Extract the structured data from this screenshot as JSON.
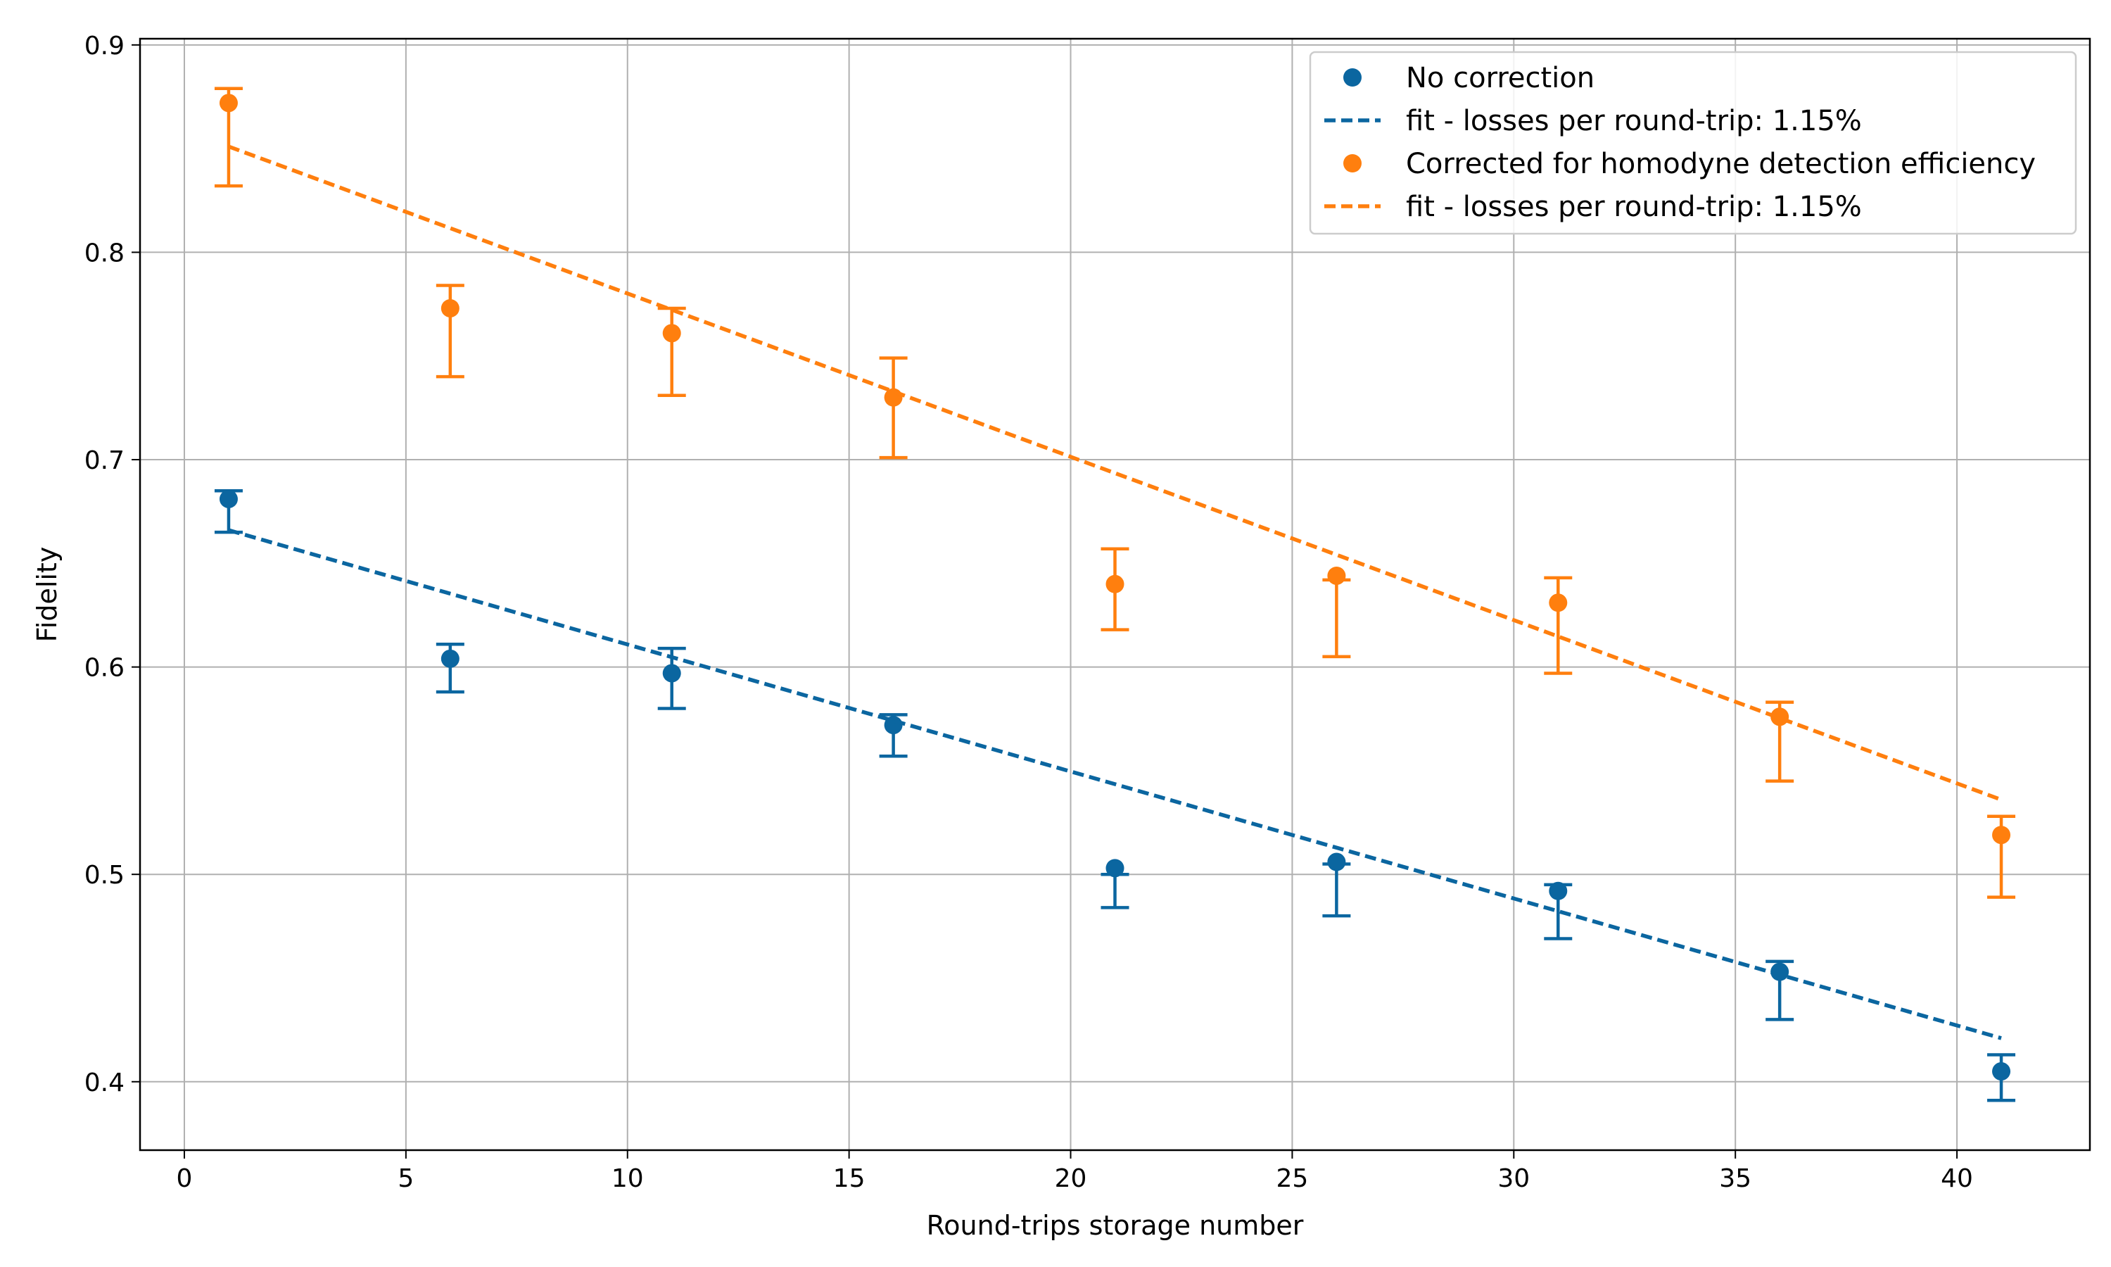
{
  "chart_data": {
    "type": "scatter",
    "title": "",
    "xlabel": "Round-trips storage number",
    "ylabel": "Fidelity",
    "xlim": [
      -1,
      43
    ],
    "ylim": [
      0.367,
      0.903
    ],
    "xticks": [
      0,
      5,
      10,
      15,
      20,
      25,
      30,
      35,
      40
    ],
    "xtick_labels": [
      "0",
      "5",
      "10",
      "15",
      "20",
      "25",
      "30",
      "35",
      "40"
    ],
    "yticks": [
      0.4,
      0.5,
      0.6,
      0.7,
      0.8,
      0.9
    ],
    "ytick_labels": [
      "0.4",
      "0.5",
      "0.6",
      "0.7",
      "0.8",
      "0.9"
    ],
    "grid": true,
    "legend_position": "top-right",
    "series": [
      {
        "name": "No correction",
        "kind": "points",
        "color": "#0b66a0",
        "x": [
          1,
          6,
          11,
          16,
          21,
          26,
          31,
          36,
          41
        ],
        "y": [
          0.681,
          0.604,
          0.597,
          0.572,
          0.503,
          0.506,
          0.492,
          0.453,
          0.405
        ],
        "err_low": [
          0.665,
          0.588,
          0.58,
          0.557,
          0.484,
          0.48,
          0.469,
          0.43,
          0.391
        ],
        "err_high": [
          0.685,
          0.611,
          0.609,
          0.577,
          0.5,
          0.505,
          0.495,
          0.458,
          0.413
        ]
      },
      {
        "name": "fit - losses per round-trip: 1.15%",
        "kind": "fit",
        "color": "#0b66a0",
        "x": [
          1,
          41
        ],
        "y": [
          0.666,
          0.421
        ],
        "decay_per_round_trip": 0.0115
      },
      {
        "name": "Corrected for homodyne detection efficiency",
        "kind": "points",
        "color": "#ff7f0e",
        "x": [
          1,
          6,
          11,
          16,
          21,
          26,
          31,
          36,
          41
        ],
        "y": [
          0.872,
          0.773,
          0.761,
          0.73,
          0.64,
          0.644,
          0.631,
          0.576,
          0.519
        ],
        "err_low": [
          0.832,
          0.74,
          0.731,
          0.701,
          0.618,
          0.605,
          0.597,
          0.545,
          0.489
        ],
        "err_high": [
          0.879,
          0.784,
          0.773,
          0.749,
          0.657,
          0.642,
          0.643,
          0.583,
          0.528
        ]
      },
      {
        "name": "fit - losses per round-trip: 1.15%",
        "kind": "fit",
        "color": "#ff7f0e",
        "x": [
          1,
          41
        ],
        "y": [
          0.851,
          0.536
        ],
        "decay_per_round_trip": 0.0115
      }
    ]
  }
}
